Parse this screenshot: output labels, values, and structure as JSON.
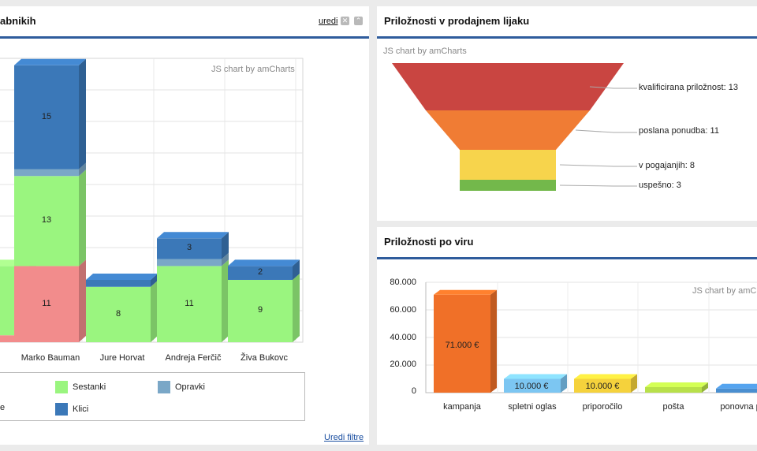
{
  "left_panel": {
    "title": "abnikih",
    "edit_label": "uredi",
    "close_icon": "close-icon",
    "collapse_icon": "collapse-icon",
    "chart_credit": "JS chart by amCharts",
    "footer_link": "Uredi filtre",
    "legend": [
      {
        "label": "Sestanki",
        "color": "#9af57f"
      },
      {
        "label": "Opravki",
        "color": "#7aa7c7"
      },
      {
        "label": "e",
        "color": "#f28c8c"
      },
      {
        "label": "Klici",
        "color": "#3b78b8"
      }
    ]
  },
  "funnel_panel": {
    "title": "Priložnosti v prodajnem lijaku",
    "chart_credit": "JS chart by amCharts",
    "labels": [
      "kvalificirana priložnost: 13",
      "poslana ponudba: 11",
      "v pogajanjih: 8",
      "uspešno: 3"
    ]
  },
  "source_panel": {
    "title": "Priložnosti po viru",
    "chart_credit": "JS chart by amCharts",
    "y_ticks": [
      "80.000",
      "60.000",
      "40.000",
      "20.000",
      "0"
    ],
    "value_labels": [
      "71.000 €",
      "10.000 €",
      "10.000 €"
    ]
  },
  "chart_data": [
    {
      "type": "bar",
      "title": "",
      "categories": [
        "",
        "Marko Bauman",
        "Jure Horvat",
        "Andreja Ferčič",
        "Živa Bukovc"
      ],
      "series": [
        {
          "name": "e",
          "color": "#f28c8c",
          "values": [
            1,
            11,
            0,
            0,
            0
          ]
        },
        {
          "name": "Sestanki",
          "color": "#9af57f",
          "values": [
            10,
            13,
            8,
            11,
            9
          ]
        },
        {
          "name": "Opravki",
          "color": "#7aa7c7",
          "values": [
            0,
            1,
            0,
            1,
            0
          ]
        },
        {
          "name": "Klici",
          "color": "#3b78b8",
          "values": [
            0,
            15,
            1,
            3,
            2
          ]
        }
      ],
      "ylim": [
        0,
        41
      ],
      "grid": true,
      "legend": "bottom"
    },
    {
      "type": "funnel",
      "categories": [
        "kvalificirana priložnost",
        "poslana ponudba",
        "v pogajanjih",
        "uspešno"
      ],
      "values": [
        13,
        11,
        8,
        3
      ],
      "colors": [
        "#c94541",
        "#f07c34",
        "#f7d44c",
        "#73b84b"
      ]
    },
    {
      "type": "bar",
      "title": "",
      "categories": [
        "kampanja",
        "spletni oglas",
        "priporočilo",
        "pošta",
        "ponovna pro"
      ],
      "values": [
        71000,
        10000,
        10000,
        4000,
        3000
      ],
      "colors": [
        "#f07028",
        "#7cc6f2",
        "#f5d23c",
        "#b8e04a",
        "#4a8fd0"
      ],
      "ylim": [
        0,
        80000
      ],
      "grid": true
    }
  ]
}
